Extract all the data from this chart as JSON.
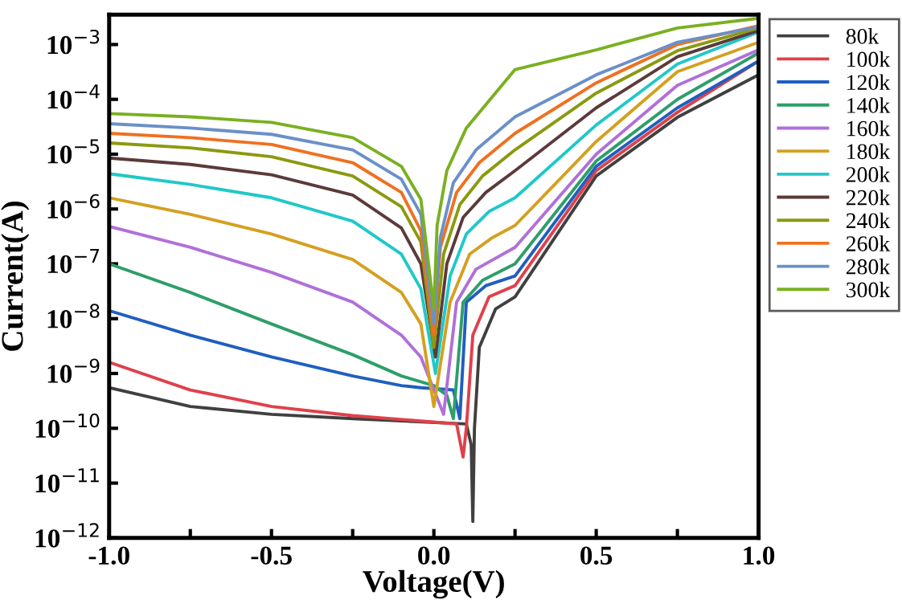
{
  "chart_data": {
    "type": "line",
    "xlabel": "Voltage(V)",
    "ylabel": "Current(A)",
    "log": "y",
    "legend": "right",
    "grid": false,
    "marker": "none",
    "line_style": "solid",
    "xlim": [
      -1.0,
      1.0
    ],
    "ylim": [
      1e-12,
      0.0035
    ],
    "xticks": [
      {
        "value": -1.0,
        "label": "-1.0"
      },
      {
        "value": -0.75,
        "label": null
      },
      {
        "value": -0.5,
        "label": "-0.5"
      },
      {
        "value": -0.25,
        "label": null
      },
      {
        "value": 0.0,
        "label": "0.0"
      },
      {
        "value": 0.25,
        "label": null
      },
      {
        "value": 0.5,
        "label": "0.5"
      },
      {
        "value": 0.75,
        "label": null
      },
      {
        "value": 1.0,
        "label": "1.0"
      }
    ],
    "yticks": [
      {
        "value": 1e-12,
        "label": "10$^{−12}$"
      },
      {
        "value": 1e-11,
        "label": "10$^{−11}$"
      },
      {
        "value": 1e-10,
        "label": "10$^{−10}$"
      },
      {
        "value": 1e-09,
        "label": "10$^{−9}$"
      },
      {
        "value": 1e-08,
        "label": "10$^{−8}$"
      },
      {
        "value": 1e-07,
        "label": "10$^{−7}$"
      },
      {
        "value": 1e-06,
        "label": "10$^{−6}$"
      },
      {
        "value": 1e-05,
        "label": "10$^{−5}$"
      },
      {
        "value": 0.0001,
        "label": "10$^{−4}$"
      },
      {
        "value": 0.001,
        "label": "10$^{−3}$"
      }
    ],
    "series": [
      {
        "name": "80k",
        "color": "#404040",
        "x": [
          -1,
          -0.75,
          -0.5,
          -0.25,
          0.1,
          0.115,
          0.12,
          0.125,
          0.14,
          0.19,
          0.25,
          0.5,
          0.75,
          1.0
        ],
        "values": [
          5.5e-10,
          2.5e-10,
          1.8e-10,
          1.5e-10,
          1.2e-10,
          5e-11,
          2e-12,
          1e-10,
          3e-09,
          1.5e-08,
          2.5e-08,
          4e-06,
          4.7e-05,
          0.00028
        ]
      },
      {
        "name": "100k",
        "color": "#e0404a",
        "x": [
          -1,
          -0.75,
          -0.5,
          -0.25,
          0,
          0.07,
          0.09,
          0.1,
          0.12,
          0.17,
          0.25,
          0.5,
          0.75,
          1.0
        ],
        "values": [
          1.6e-09,
          5e-10,
          2.5e-10,
          1.7e-10,
          1.3e-10,
          1.2e-10,
          3e-11,
          1e-10,
          5e-09,
          2.5e-08,
          4e-08,
          5e-06,
          5.8e-05,
          0.0005
        ]
      },
      {
        "name": "120k",
        "color": "#1f5fbf",
        "x": [
          -1,
          -0.75,
          -0.5,
          -0.25,
          -0.1,
          -0.04,
          0.06,
          0.08,
          0.1,
          0.16,
          0.25,
          0.5,
          0.75,
          1.0
        ],
        "values": [
          1.4e-08,
          5e-09,
          2e-09,
          9e-10,
          6e-10,
          5.5e-10,
          5e-10,
          1.5e-10,
          2e-08,
          4e-08,
          6e-08,
          6e-06,
          7e-05,
          0.0005
        ]
      },
      {
        "name": "140k",
        "color": "#2e9e6a",
        "x": [
          -1,
          -0.75,
          -0.5,
          -0.25,
          -0.1,
          0,
          0.04,
          0.06,
          0.09,
          0.15,
          0.25,
          0.5,
          0.75,
          1.0
        ],
        "values": [
          1e-07,
          3e-08,
          8e-09,
          2.2e-09,
          9e-10,
          6e-10,
          4e-10,
          1.5e-10,
          2e-08,
          5e-08,
          1e-07,
          7.5e-06,
          0.0001,
          0.0007
        ]
      },
      {
        "name": "160k",
        "color": "#b070d8",
        "x": [
          -1,
          -0.75,
          -0.5,
          -0.25,
          -0.1,
          -0.04,
          0.03,
          0.07,
          0.13,
          0.25,
          0.5,
          0.75,
          1.0
        ],
        "values": [
          4.8e-07,
          2e-07,
          7e-08,
          2e-08,
          5e-09,
          2e-09,
          1.8e-10,
          2e-08,
          8e-08,
          2e-07,
          1e-05,
          0.00018,
          0.0008
        ]
      },
      {
        "name": "180k",
        "color": "#d4a020",
        "x": [
          -1,
          -0.75,
          -0.5,
          -0.25,
          -0.1,
          -0.04,
          0,
          0.05,
          0.11,
          0.18,
          0.25,
          0.5,
          0.75,
          1.0
        ],
        "values": [
          1.6e-06,
          8e-07,
          3.5e-07,
          1.2e-07,
          3e-08,
          8e-09,
          2.5e-10,
          2e-08,
          1.5e-07,
          3e-07,
          5e-07,
          1.7e-05,
          0.00032,
          0.0011
        ]
      },
      {
        "name": "200k",
        "color": "#20c8c8",
        "x": [
          -1,
          -0.75,
          -0.5,
          -0.25,
          -0.1,
          -0.04,
          0.005,
          0.05,
          0.1,
          0.17,
          0.25,
          0.5,
          0.75,
          1.0
        ],
        "values": [
          4.4e-06,
          2.8e-06,
          1.6e-06,
          6e-07,
          1.5e-07,
          3.5e-08,
          1e-09,
          6e-08,
          3.5e-07,
          9e-07,
          1.6e-06,
          3.4e-05,
          0.00044,
          0.0017
        ]
      },
      {
        "name": "220k",
        "color": "#5c3a3a",
        "x": [
          -1,
          -0.75,
          -0.5,
          -0.25,
          -0.1,
          -0.04,
          0.005,
          0.04,
          0.09,
          0.16,
          0.25,
          0.5,
          0.75,
          1.0
        ],
        "values": [
          8.5e-06,
          6.5e-06,
          4.2e-06,
          1.8e-06,
          4.5e-07,
          1e-07,
          2e-09,
          1e-07,
          7e-07,
          2e-06,
          5e-06,
          7e-05,
          0.0006,
          0.0018
        ]
      },
      {
        "name": "240k",
        "color": "#8a9a10",
        "x": [
          -1,
          -0.75,
          -0.5,
          -0.25,
          -0.1,
          -0.04,
          0,
          0.03,
          0.08,
          0.15,
          0.25,
          0.5,
          0.75,
          1.0
        ],
        "values": [
          1.6e-05,
          1.3e-05,
          9e-06,
          4e-06,
          1.1e-06,
          2.5e-07,
          3e-09,
          1.5e-07,
          1.2e-06,
          4e-06,
          1.2e-05,
          0.00013,
          0.00077,
          0.002
        ]
      },
      {
        "name": "260k",
        "color": "#f07020",
        "x": [
          -1,
          -0.75,
          -0.5,
          -0.25,
          -0.1,
          -0.04,
          0,
          0.02,
          0.07,
          0.14,
          0.25,
          0.5,
          0.75,
          1.0
        ],
        "values": [
          2.4e-05,
          2e-05,
          1.5e-05,
          7e-06,
          2e-06,
          4e-07,
          5e-09,
          2e-07,
          2e-06,
          7e-06,
          2.4e-05,
          0.0002,
          0.001,
          0.0022
        ]
      },
      {
        "name": "280k",
        "color": "#6a90c8",
        "x": [
          -1,
          -0.75,
          -0.5,
          -0.25,
          -0.1,
          -0.04,
          0,
          0.02,
          0.06,
          0.13,
          0.25,
          0.5,
          0.75,
          1.0
        ],
        "values": [
          3.6e-05,
          3e-05,
          2.3e-05,
          1.2e-05,
          3.5e-06,
          8e-07,
          8e-09,
          3e-07,
          3e-06,
          1.2e-05,
          4.8e-05,
          0.00028,
          0.0011,
          0.0021
        ]
      },
      {
        "name": "300k",
        "color": "#7ab020",
        "x": [
          -1,
          -0.75,
          -0.5,
          -0.25,
          -0.1,
          -0.04,
          0,
          0.01,
          0.04,
          0.1,
          0.25,
          0.5,
          0.75,
          1.0
        ],
        "values": [
          5.5e-05,
          4.8e-05,
          3.8e-05,
          2e-05,
          6e-06,
          1.5e-06,
          1.5e-08,
          5e-07,
          5e-06,
          3e-05,
          0.00035,
          0.0008,
          0.002,
          0.003
        ]
      }
    ]
  }
}
